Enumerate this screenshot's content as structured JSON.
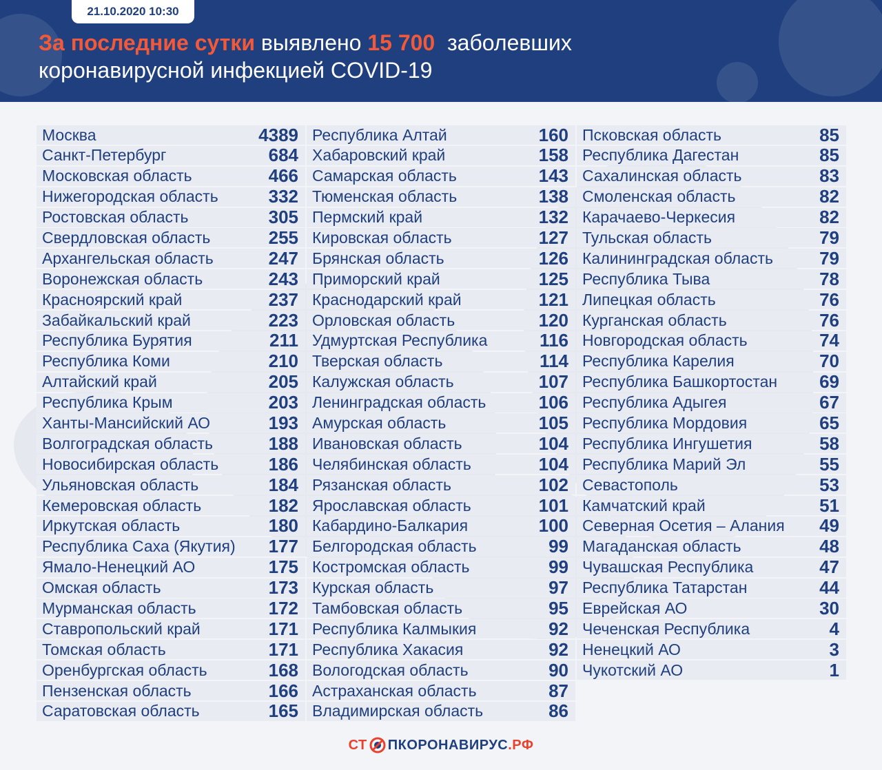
{
  "header": {
    "date": "21.10.2020 10:30",
    "headline_highlight": "За последние сутки",
    "headline_mid": "выявлено",
    "headline_number": "15 700",
    "headline_tail": "заболевших",
    "headline_line2": "коронавирусной инфекцией COVID-19"
  },
  "columns": [
    [
      {
        "name": "Москва",
        "value": "4389"
      },
      {
        "name": "Санкт-Петербург",
        "value": "684"
      },
      {
        "name": "Московская область",
        "value": "466"
      },
      {
        "name": "Нижегородская область",
        "value": "332"
      },
      {
        "name": "Ростовская область",
        "value": "305"
      },
      {
        "name": "Свердловская область",
        "value": "255"
      },
      {
        "name": "Архангельская область",
        "value": "247"
      },
      {
        "name": "Воронежская область",
        "value": "243"
      },
      {
        "name": "Красноярский край",
        "value": "237"
      },
      {
        "name": "Забайкальский край",
        "value": "223"
      },
      {
        "name": "Республика Бурятия",
        "value": "211"
      },
      {
        "name": "Республика Коми",
        "value": "210"
      },
      {
        "name": "Алтайский край",
        "value": "205"
      },
      {
        "name": "Республика Крым",
        "value": "203"
      },
      {
        "name": "Ханты-Мансийский АО",
        "value": "193"
      },
      {
        "name": "Волгоградская область",
        "value": "188"
      },
      {
        "name": "Новосибирская область",
        "value": "186"
      },
      {
        "name": "Ульяновская область",
        "value": "184"
      },
      {
        "name": "Кемеровская область",
        "value": "182"
      },
      {
        "name": "Иркутская область",
        "value": "180"
      },
      {
        "name": "Республика Саха (Якутия)",
        "value": "177"
      },
      {
        "name": "Ямало-Ненецкий АО",
        "value": "175"
      },
      {
        "name": "Омская область",
        "value": "173"
      },
      {
        "name": "Мурманская область",
        "value": "172"
      },
      {
        "name": "Ставропольский край",
        "value": "171"
      },
      {
        "name": "Томская область",
        "value": "171"
      },
      {
        "name": "Оренбургская область",
        "value": "168"
      },
      {
        "name": "Пензенская область",
        "value": "166"
      },
      {
        "name": "Саратовская область",
        "value": "165"
      }
    ],
    [
      {
        "name": "Республика  Алтай",
        "value": "160"
      },
      {
        "name": "Хабаровский край",
        "value": "158"
      },
      {
        "name": "Самарская область",
        "value": "143"
      },
      {
        "name": "Тюменская область",
        "value": "138"
      },
      {
        "name": "Пермский край",
        "value": "132"
      },
      {
        "name": "Кировская область",
        "value": "127"
      },
      {
        "name": "Брянская область",
        "value": "126"
      },
      {
        "name": "Приморский край",
        "value": "125"
      },
      {
        "name": "Краснодарский край",
        "value": "121"
      },
      {
        "name": "Орловская область",
        "value": "120"
      },
      {
        "name": "Удмуртская Республика",
        "value": "116"
      },
      {
        "name": "Тверская область",
        "value": "114"
      },
      {
        "name": "Калужская область",
        "value": "107"
      },
      {
        "name": "Ленинградская область",
        "value": "106"
      },
      {
        "name": "Амурская область",
        "value": "105"
      },
      {
        "name": "Ивановская область",
        "value": "104"
      },
      {
        "name": "Челябинская область",
        "value": "104"
      },
      {
        "name": "Рязанская область",
        "value": "102"
      },
      {
        "name": "Ярославская область",
        "value": "101"
      },
      {
        "name": "Кабардино-Балкария",
        "value": "100"
      },
      {
        "name": "Белгородская область",
        "value": "99"
      },
      {
        "name": "Костромская область",
        "value": "99"
      },
      {
        "name": "Курская область",
        "value": "97"
      },
      {
        "name": "Тамбовская область",
        "value": "95"
      },
      {
        "name": "Республика Калмыкия",
        "value": "92"
      },
      {
        "name": "Республика Хакасия",
        "value": "92"
      },
      {
        "name": "Вологодская область",
        "value": "90"
      },
      {
        "name": "Астраханская область",
        "value": "87"
      },
      {
        "name": "Владимирская область",
        "value": "86"
      }
    ],
    [
      {
        "name": "Псковская область",
        "value": "85"
      },
      {
        "name": "Республика Дагестан",
        "value": "85"
      },
      {
        "name": "Сахалинская область",
        "value": "83"
      },
      {
        "name": "Смоленская область",
        "value": "82"
      },
      {
        "name": "Карачаево-Черкесия",
        "value": "82"
      },
      {
        "name": "Тульская область",
        "value": "79"
      },
      {
        "name": "Калининградская область",
        "value": "79"
      },
      {
        "name": "Республика Тыва",
        "value": "78"
      },
      {
        "name": "Липецкая область",
        "value": "76"
      },
      {
        "name": "Курганская область",
        "value": "76"
      },
      {
        "name": "Новгородская область",
        "value": "74"
      },
      {
        "name": "Республика Карелия",
        "value": "70"
      },
      {
        "name": "Республика Башкортостан",
        "value": "69"
      },
      {
        "name": "Республика Адыгея",
        "value": "67"
      },
      {
        "name": "Республика Мордовия",
        "value": "65"
      },
      {
        "name": "Республика Ингушетия",
        "value": "58"
      },
      {
        "name": "Республика Марий Эл",
        "value": "55"
      },
      {
        "name": "Севастополь",
        "value": "53"
      },
      {
        "name": "Камчатский край",
        "value": "51"
      },
      {
        "name": "Северная Осетия – Алания",
        "value": "49"
      },
      {
        "name": "Магаданская область",
        "value": "48"
      },
      {
        "name": "Чувашская Республика",
        "value": "47"
      },
      {
        "name": "Республика Татарстан",
        "value": "44"
      },
      {
        "name": "Еврейская АО",
        "value": "30"
      },
      {
        "name": "Чеченская Республика",
        "value": "4"
      },
      {
        "name": "Ненецкий АО",
        "value": "3"
      },
      {
        "name": "Чукотский АО",
        "value": "1"
      }
    ]
  ],
  "footer": {
    "logo_part1": "СТ",
    "logo_part2": "ПКОРОНАВИРУС",
    "logo_part3": ".РФ",
    "logo_icon": "virus-stop-icon"
  },
  "colors": {
    "header_bg": "#1f3f7e",
    "accent": "#f05a3a",
    "row_bg": "#e9ebf2",
    "text": "#1f3f7e"
  }
}
